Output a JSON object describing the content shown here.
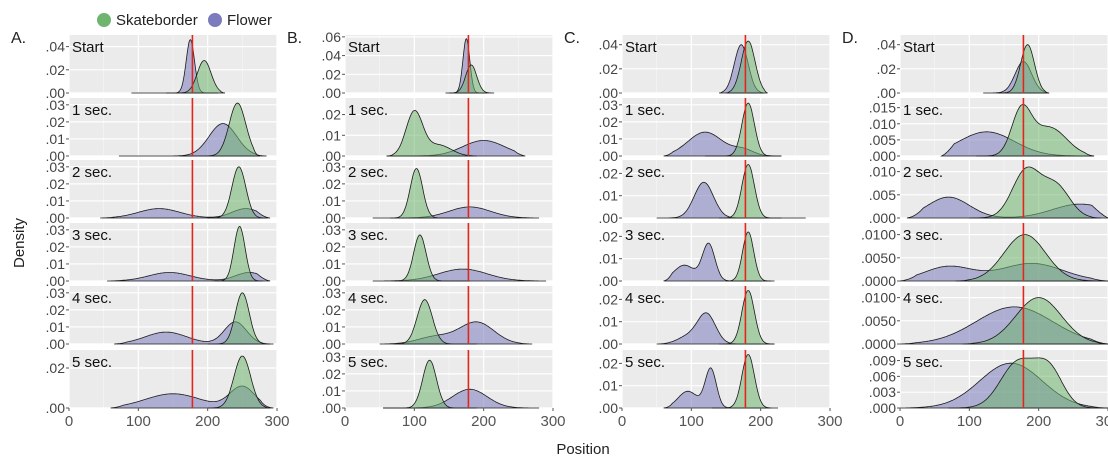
{
  "legend": [
    {
      "label": "Skateborder",
      "color": "#6fb46f"
    },
    {
      "label": "Flower",
      "color": "#7b7bbd"
    }
  ],
  "xlabel": "Position",
  "ylabel": "Density",
  "chart_data": {
    "type": "area",
    "xlim": [
      0,
      300
    ],
    "xticks": [
      "0",
      "100",
      "200",
      "300"
    ],
    "reference_line_x": 178,
    "row_labels": [
      "Start",
      "1 sec.",
      "2 sec.",
      "3 sec.",
      "4 sec.",
      "5 sec."
    ],
    "panels": [
      {
        "label": "A.",
        "rows": [
          {
            "yticks": [
              ".04",
              ".02",
              ".00"
            ],
            "ymax": 0.05,
            "skateborder": [
              {
                "mu": 195,
                "sd": 10,
                "w": 1
              }
            ],
            "s_peak": 0.028,
            "s_range": [
              140,
              225
            ],
            "flower": [
              {
                "mu": 175,
                "sd": 6,
                "w": 1
              }
            ],
            "f_peak": 0.046,
            "f_range": [
              90,
              215
            ]
          },
          {
            "yticks": [
              ".03",
              ".02",
              ".01",
              ".00"
            ],
            "ymax": 0.034,
            "skateborder": [
              {
                "mu": 243,
                "sd": 12,
                "w": 1
              }
            ],
            "s_peak": 0.031,
            "s_range": [
              160,
              275
            ],
            "flower": [
              {
                "mu": 222,
                "sd": 20,
                "w": 1
              }
            ],
            "f_peak": 0.019,
            "f_range": [
              72,
              285
            ]
          },
          {
            "yticks": [
              ".03",
              ".02",
              ".01",
              ".00"
            ],
            "ymax": 0.034,
            "skateborder": [
              {
                "mu": 245,
                "sd": 10,
                "w": 1
              }
            ],
            "s_peak": 0.03,
            "s_range": [
              200,
              285
            ],
            "flower": [
              {
                "mu": 130,
                "sd": 30,
                "w": 0.5
              },
              {
                "mu": 255,
                "sd": 20,
                "w": 0.5
              }
            ],
            "f_peak": 0.0055,
            "f_range": [
              45,
              290
            ]
          },
          {
            "yticks": [
              ".03",
              ".02",
              ".01",
              ".00"
            ],
            "ymax": 0.034,
            "skateborder": [
              {
                "mu": 246,
                "sd": 8,
                "w": 1
              }
            ],
            "s_peak": 0.032,
            "s_range": [
              210,
              280
            ],
            "flower": [
              {
                "mu": 145,
                "sd": 30,
                "w": 0.5
              },
              {
                "mu": 260,
                "sd": 20,
                "w": 0.5
              }
            ],
            "f_peak": 0.005,
            "f_range": [
              55,
              290
            ]
          },
          {
            "yticks": [
              ".03",
              ".02",
              ".01",
              ".00"
            ],
            "ymax": 0.034,
            "skateborder": [
              {
                "mu": 250,
                "sd": 10,
                "w": 1
              }
            ],
            "s_peak": 0.03,
            "s_range": [
              200,
              290
            ],
            "flower": [
              {
                "mu": 140,
                "sd": 30,
                "w": 0.35
              },
              {
                "mu": 240,
                "sd": 16,
                "w": 0.65
              }
            ],
            "f_peak": 0.013,
            "f_range": [
              65,
              295
            ]
          },
          {
            "yticks": [
              ".02",
              ".00"
            ],
            "ymax": 0.029,
            "skateborder": [
              {
                "mu": 250,
                "sd": 12,
                "w": 1
              }
            ],
            "s_peak": 0.026,
            "s_range": [
              200,
              290
            ],
            "flower": [
              {
                "mu": 150,
                "sd": 40,
                "w": 0.4
              },
              {
                "mu": 250,
                "sd": 18,
                "w": 0.6
              }
            ],
            "f_peak": 0.011,
            "f_range": [
              60,
              295
            ]
          }
        ]
      },
      {
        "label": "B.",
        "rows": [
          {
            "yticks": [
              ".06",
              ".04",
              ".02",
              ".00"
            ],
            "ymax": 0.062,
            "skateborder": [
              {
                "mu": 182,
                "sd": 8,
                "w": 1
              }
            ],
            "s_peak": 0.03,
            "s_range": [
              145,
              215
            ],
            "flower": [
              {
                "mu": 175,
                "sd": 5,
                "w": 1
              }
            ],
            "f_peak": 0.058,
            "f_range": [
              150,
              205
            ]
          },
          {
            "yticks": [
              ".02",
              ".01",
              ".00"
            ],
            "ymax": 0.028,
            "skateborder": [
              {
                "mu": 100,
                "sd": 12,
                "w": 0.8
              },
              {
                "mu": 135,
                "sd": 18,
                "w": 0.2
              }
            ],
            "s_peak": 0.022,
            "s_range": [
              60,
              190
            ],
            "flower": [
              {
                "mu": 200,
                "sd": 30,
                "w": 1
              }
            ],
            "f_peak": 0.0075,
            "f_range": [
              60,
              260
            ]
          },
          {
            "yticks": [
              ".03",
              ".02",
              ".01",
              ".00"
            ],
            "ymax": 0.034,
            "skateborder": [
              {
                "mu": 103,
                "sd": 9,
                "w": 1
              }
            ],
            "s_peak": 0.029,
            "s_range": [
              65,
              180
            ],
            "flower": [
              {
                "mu": 180,
                "sd": 30,
                "w": 1
              }
            ],
            "f_peak": 0.0065,
            "f_range": [
              40,
              280
            ]
          },
          {
            "yticks": [
              ".03",
              ".02",
              ".01",
              ".00"
            ],
            "ymax": 0.034,
            "skateborder": [
              {
                "mu": 108,
                "sd": 9,
                "w": 1
              }
            ],
            "s_peak": 0.027,
            "s_range": [
              70,
              180
            ],
            "flower": [
              {
                "mu": 170,
                "sd": 35,
                "w": 1
              }
            ],
            "f_peak": 0.007,
            "f_range": [
              40,
              290
            ]
          },
          {
            "yticks": [
              ".03",
              ".02",
              ".01",
              ".00"
            ],
            "ymax": 0.034,
            "skateborder": [
              {
                "mu": 115,
                "sd": 11,
                "w": 1
              }
            ],
            "s_peak": 0.026,
            "s_range": [
              70,
              190
            ],
            "flower": [
              {
                "mu": 190,
                "sd": 25,
                "w": 0.75
              },
              {
                "mu": 130,
                "sd": 25,
                "w": 0.25
              }
            ],
            "f_peak": 0.013,
            "f_range": [
              50,
              270
            ]
          },
          {
            "yticks": [
              ".03",
              ".02",
              ".01",
              ".00"
            ],
            "ymax": 0.034,
            "skateborder": [
              {
                "mu": 122,
                "sd": 10,
                "w": 1
              }
            ],
            "s_peak": 0.028,
            "s_range": [
              55,
              190
            ],
            "flower": [
              {
                "mu": 180,
                "sd": 25,
                "w": 1
              }
            ],
            "f_peak": 0.011,
            "f_range": [
              55,
              280
            ]
          }
        ]
      },
      {
        "label": "C.",
        "rows": [
          {
            "yticks": [
              ".04",
              ".02",
              ".00"
            ],
            "ymax": 0.048,
            "skateborder": [
              {
                "mu": 182,
                "sd": 10,
                "w": 1
              }
            ],
            "s_peak": 0.043,
            "s_range": [
              150,
              210
            ],
            "flower": [
              {
                "mu": 172,
                "sd": 10,
                "w": 1
              }
            ],
            "f_peak": 0.04,
            "f_range": [
              140,
              205
            ]
          },
          {
            "yticks": [
              ".03",
              ".02",
              ".01",
              ".00"
            ],
            "ymax": 0.034,
            "skateborder": [
              {
                "mu": 182,
                "sd": 9,
                "w": 1
              }
            ],
            "s_peak": 0.031,
            "s_range": [
              120,
              230
            ],
            "flower": [
              {
                "mu": 120,
                "sd": 25,
                "w": 0.8
              },
              {
                "mu": 175,
                "sd": 15,
                "w": 0.2
              }
            ],
            "f_peak": 0.014,
            "f_range": [
              60,
              230
            ]
          },
          {
            "yticks": [
              ".02",
              ".01",
              ".00"
            ],
            "ymax": 0.026,
            "skateborder": [
              {
                "mu": 182,
                "sd": 9,
                "w": 1
              }
            ],
            "s_peak": 0.024,
            "s_range": [
              140,
              265
            ],
            "flower": [
              {
                "mu": 118,
                "sd": 14,
                "w": 1
              }
            ],
            "f_peak": 0.016,
            "f_range": [
              50,
              230
            ]
          },
          {
            "yticks": [
              ".02",
              ".01",
              ".00"
            ],
            "ymax": 0.026,
            "skateborder": [
              {
                "mu": 182,
                "sd": 8,
                "w": 1
              }
            ],
            "s_peak": 0.022,
            "s_range": [
              150,
              220
            ],
            "flower": [
              {
                "mu": 125,
                "sd": 9,
                "w": 0.7
              },
              {
                "mu": 90,
                "sd": 15,
                "w": 0.3
              }
            ],
            "f_peak": 0.017,
            "f_range": [
              60,
              215
            ]
          },
          {
            "yticks": [
              ".02",
              ".01",
              ".00"
            ],
            "ymax": 0.026,
            "skateborder": [
              {
                "mu": 182,
                "sd": 9,
                "w": 1
              }
            ],
            "s_peak": 0.024,
            "s_range": [
              140,
              220
            ],
            "flower": [
              {
                "mu": 122,
                "sd": 13,
                "w": 0.8
              },
              {
                "mu": 95,
                "sd": 15,
                "w": 0.2
              }
            ],
            "f_peak": 0.014,
            "f_range": [
              50,
              220
            ]
          },
          {
            "yticks": [
              ".02",
              ".01",
              ".00"
            ],
            "ymax": 0.026,
            "skateborder": [
              {
                "mu": 182,
                "sd": 9,
                "w": 1
              }
            ],
            "s_peak": 0.024,
            "s_range": [
              130,
              225
            ],
            "flower": [
              {
                "mu": 128,
                "sd": 8,
                "w": 0.7
              },
              {
                "mu": 95,
                "sd": 14,
                "w": 0.3
              }
            ],
            "f_peak": 0.018,
            "f_range": [
              60,
              215
            ]
          }
        ]
      },
      {
        "label": "D.",
        "rows": [
          {
            "yticks": [
              ".04",
              ".02",
              ".00"
            ],
            "ymax": 0.048,
            "skateborder": [
              {
                "mu": 184,
                "sd": 10,
                "w": 1
              }
            ],
            "s_peak": 0.04,
            "s_range": [
              140,
              215
            ],
            "flower": [
              {
                "mu": 178,
                "sd": 12,
                "w": 1
              }
            ],
            "f_peak": 0.026,
            "f_range": [
              120,
              215
            ]
          },
          {
            "yticks": [
              ".015",
              ".010",
              ".005",
              ".000"
            ],
            "ymax": 0.018,
            "skateborder": [
              {
                "mu": 175,
                "sd": 14,
                "w": 0.6
              },
              {
                "mu": 215,
                "sd": 25,
                "w": 0.4
              }
            ],
            "s_peak": 0.016,
            "s_range": [
              110,
              280
            ],
            "flower": [
              {
                "mu": 125,
                "sd": 40,
                "w": 1
              }
            ],
            "f_peak": 0.0075,
            "f_range": [
              60,
              280
            ]
          },
          {
            "yticks": [
              ".010",
              ".005",
              ".000"
            ],
            "ymax": 0.0125,
            "skateborder": [
              {
                "mu": 182,
                "sd": 20,
                "w": 0.6
              },
              {
                "mu": 225,
                "sd": 20,
                "w": 0.4
              }
            ],
            "s_peak": 0.011,
            "s_range": [
              100,
              290
            ],
            "flower": [
              {
                "mu": 70,
                "sd": 30,
                "w": 0.6
              },
              {
                "mu": 260,
                "sd": 40,
                "w": 0.4
              }
            ],
            "f_peak": 0.0045,
            "f_range": [
              10,
              300
            ]
          },
          {
            "yticks": [
              ".0100",
              ".0050",
              ".0000"
            ],
            "ymax": 0.0125,
            "skateborder": [
              {
                "mu": 180,
                "sd": 30,
                "w": 1
              }
            ],
            "s_peak": 0.01,
            "s_range": [
              80,
              300
            ],
            "flower": [
              {
                "mu": 70,
                "sd": 35,
                "w": 0.45
              },
              {
                "mu": 190,
                "sd": 45,
                "w": 0.55
              }
            ],
            "f_peak": 0.0038,
            "f_range": [
              0,
              300
            ]
          },
          {
            "yticks": [
              ".0100",
              ".0050",
              ".0000"
            ],
            "ymax": 0.0125,
            "skateborder": [
              {
                "mu": 200,
                "sd": 33,
                "w": 1
              }
            ],
            "s_peak": 0.01,
            "s_range": [
              90,
              300
            ],
            "flower": [
              {
                "mu": 165,
                "sd": 55,
                "w": 1
              }
            ],
            "f_peak": 0.008,
            "f_range": [
              0,
              300
            ]
          },
          {
            "yticks": [
              ".009",
              ".006",
              ".003",
              ".000"
            ],
            "ymax": 0.011,
            "skateborder": [
              {
                "mu": 170,
                "sd": 25,
                "w": 0.55
              },
              {
                "mu": 215,
                "sd": 20,
                "w": 0.45
              }
            ],
            "s_peak": 0.0095,
            "s_range": [
              70,
              300
            ],
            "flower": [
              {
                "mu": 160,
                "sd": 45,
                "w": 1
              }
            ],
            "f_peak": 0.0085,
            "f_range": [
              0,
              300
            ]
          }
        ]
      }
    ]
  }
}
